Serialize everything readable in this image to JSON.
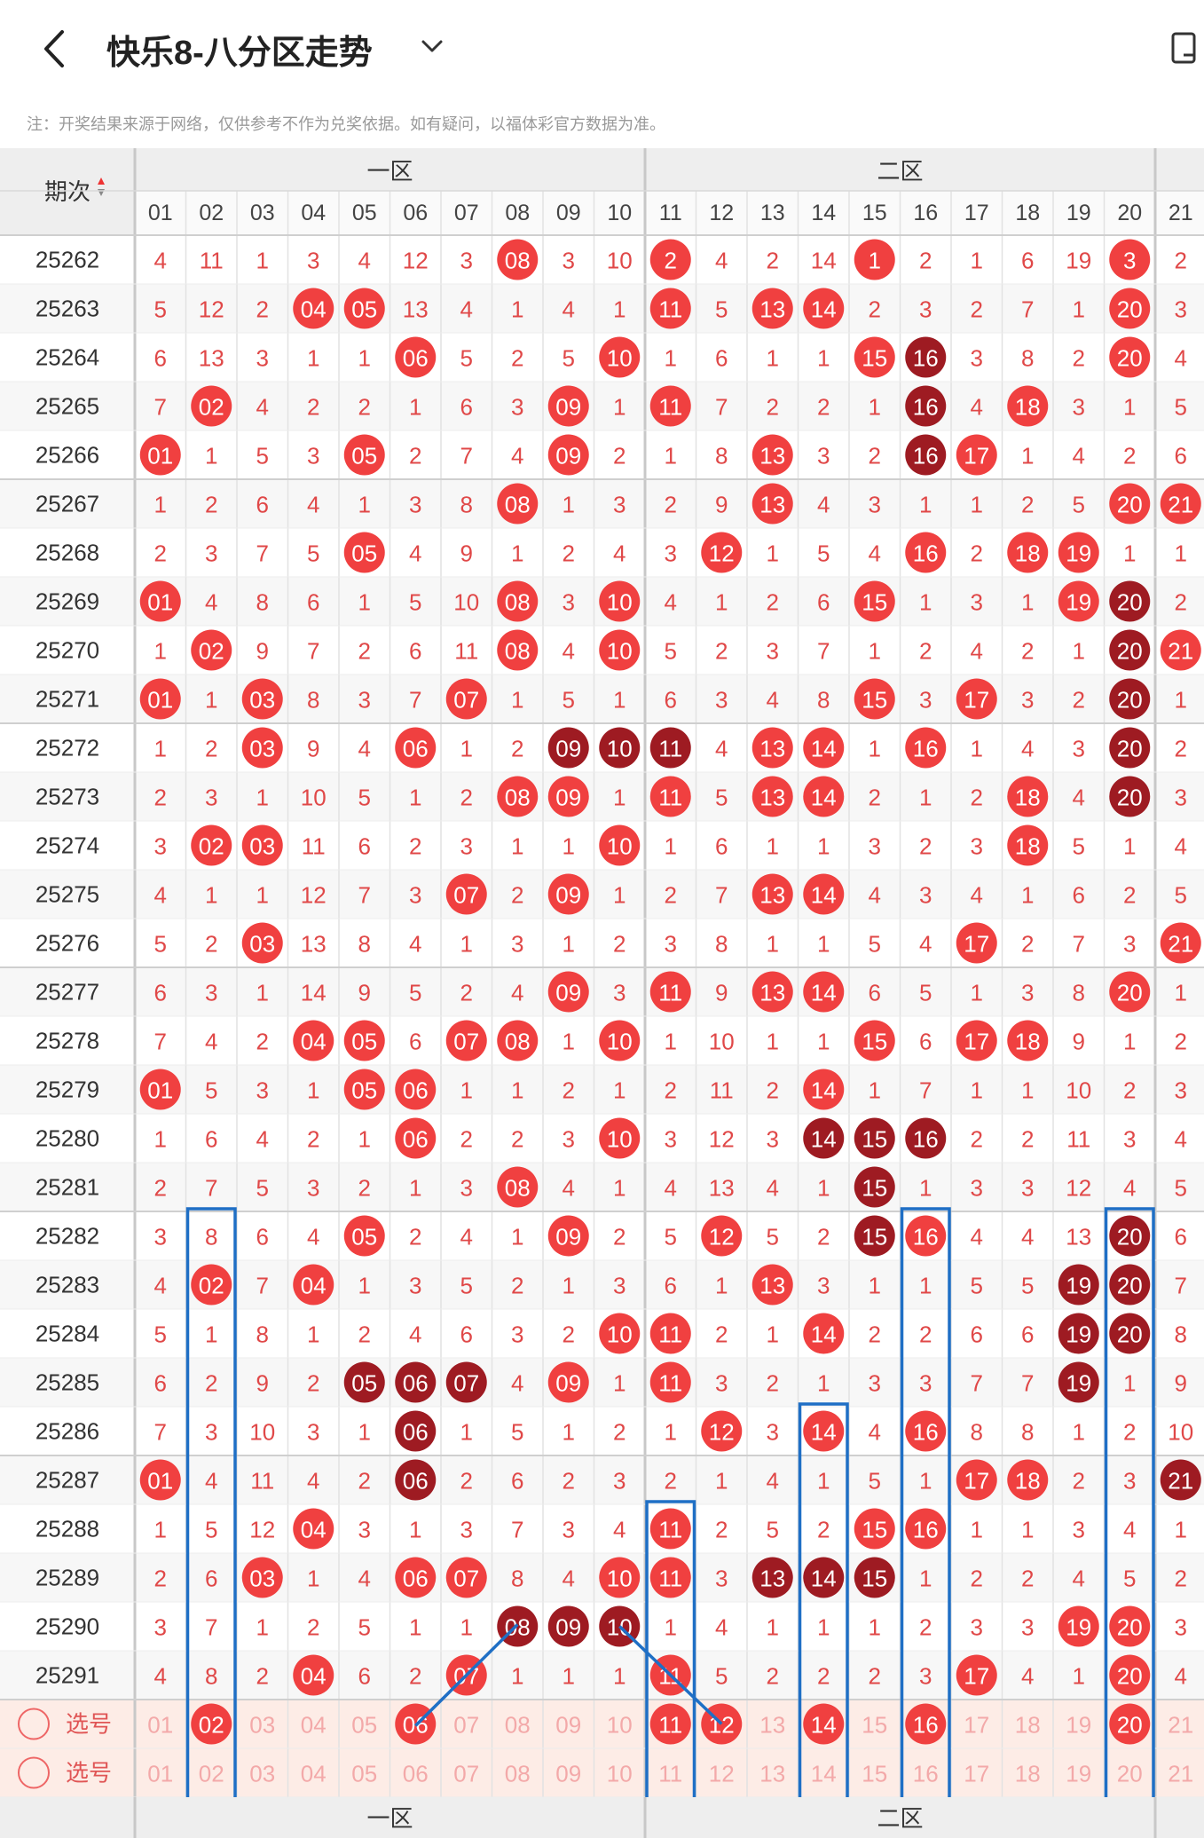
{
  "header": {
    "title": "快乐8-八分区走势",
    "back_icon": "chevron-left-icon",
    "dropdown_icon": "chevron-down-icon",
    "right_icon": "device-icon"
  },
  "note": "注：开奖结果来源于网络，仅供参考不作为兑奖依据。如有疑问，以福体彩官方数据为准。",
  "table": {
    "issue_header": "期次",
    "zones": [
      "一区",
      "二区"
    ],
    "columns": [
      "01",
      "02",
      "03",
      "04",
      "05",
      "06",
      "07",
      "08",
      "09",
      "10",
      "11",
      "12",
      "13",
      "14",
      "15",
      "16",
      "17",
      "18",
      "19",
      "20",
      "21"
    ],
    "rows": [
      {
        "issue": "25262",
        "cells": [
          "4",
          "11",
          "1",
          "3",
          "4",
          "12",
          "3",
          "08",
          "3",
          "10",
          "2",
          "4",
          "2",
          "14",
          "1",
          "2",
          "1",
          "6",
          "19",
          "3",
          "2"
        ],
        "states": "0000000100100010000100"
      },
      {
        "issue": "25263",
        "cells": [
          "5",
          "12",
          "2",
          "04",
          "05",
          "13",
          "4",
          "1",
          "4",
          "1",
          "11",
          "5",
          "13",
          "14",
          "2",
          "3",
          "2",
          "7",
          "1",
          "20",
          "3"
        ],
        "states": "0001100000101100000100"
      },
      {
        "issue": "25264",
        "cells": [
          "6",
          "13",
          "3",
          "1",
          "1",
          "06",
          "5",
          "2",
          "5",
          "10",
          "1",
          "6",
          "1",
          "1",
          "15",
          "16",
          "3",
          "8",
          "2",
          "20",
          "4"
        ],
        "states": "0000010001000012000100"
      },
      {
        "issue": "25265",
        "cells": [
          "7",
          "02",
          "4",
          "2",
          "2",
          "1",
          "6",
          "3",
          "09",
          "1",
          "11",
          "7",
          "2",
          "2",
          "1",
          "16",
          "4",
          "18",
          "3",
          "1",
          "5"
        ],
        "states": "0100000010100002010000"
      },
      {
        "issue": "25266",
        "cells": [
          "01",
          "1",
          "5",
          "3",
          "05",
          "2",
          "7",
          "4",
          "09",
          "2",
          "1",
          "8",
          "13",
          "3",
          "2",
          "16",
          "17",
          "1",
          "4",
          "2",
          "6"
        ],
        "states": "1000100010001002100000"
      },
      {
        "issue": "25267",
        "cells": [
          "1",
          "2",
          "6",
          "4",
          "1",
          "3",
          "8",
          "08",
          "1",
          "3",
          "2",
          "9",
          "13",
          "4",
          "3",
          "1",
          "1",
          "2",
          "5",
          "20",
          "21"
        ],
        "states": "0000000100001000000110"
      },
      {
        "issue": "25268",
        "cells": [
          "2",
          "3",
          "7",
          "5",
          "05",
          "4",
          "9",
          "1",
          "2",
          "4",
          "3",
          "12",
          "1",
          "5",
          "4",
          "16",
          "2",
          "18",
          "19",
          "1",
          "1"
        ],
        "states": "0000100000010001011000"
      },
      {
        "issue": "25269",
        "cells": [
          "01",
          "4",
          "8",
          "6",
          "1",
          "5",
          "10",
          "08",
          "3",
          "10",
          "4",
          "1",
          "2",
          "6",
          "15",
          "1",
          "3",
          "1",
          "19",
          "20",
          "2"
        ],
        "states": "1000000101000010001200"
      },
      {
        "issue": "25270",
        "cells": [
          "1",
          "02",
          "9",
          "7",
          "2",
          "6",
          "11",
          "08",
          "4",
          "10",
          "5",
          "2",
          "3",
          "7",
          "1",
          "2",
          "4",
          "2",
          "1",
          "20",
          "21"
        ],
        "states": "0100000101000000000210"
      },
      {
        "issue": "25271",
        "cells": [
          "01",
          "1",
          "03",
          "8",
          "3",
          "7",
          "07",
          "1",
          "5",
          "1",
          "6",
          "3",
          "4",
          "8",
          "15",
          "3",
          "17",
          "3",
          "2",
          "20",
          "1"
        ],
        "states": "1010001000000010100200"
      },
      {
        "issue": "25272",
        "cells": [
          "1",
          "2",
          "03",
          "9",
          "4",
          "06",
          "1",
          "2",
          "09",
          "10",
          "11",
          "4",
          "13",
          "14",
          "1",
          "16",
          "1",
          "4",
          "3",
          "20",
          "2"
        ],
        "states": "0010010022201101000200"
      },
      {
        "issue": "25273",
        "cells": [
          "2",
          "3",
          "1",
          "10",
          "5",
          "1",
          "2",
          "08",
          "09",
          "1",
          "11",
          "5",
          "13",
          "14",
          "2",
          "1",
          "2",
          "18",
          "4",
          "20",
          "3"
        ],
        "states": "0000000110101100010200"
      },
      {
        "issue": "25274",
        "cells": [
          "3",
          "02",
          "03",
          "11",
          "6",
          "2",
          "3",
          "1",
          "1",
          "10",
          "1",
          "6",
          "1",
          "1",
          "3",
          "2",
          "3",
          "18",
          "5",
          "1",
          "4"
        ],
        "states": "0110000001000000010000"
      },
      {
        "issue": "25275",
        "cells": [
          "4",
          "1",
          "1",
          "12",
          "7",
          "3",
          "07",
          "2",
          "09",
          "1",
          "2",
          "7",
          "13",
          "14",
          "4",
          "3",
          "4",
          "1",
          "6",
          "2",
          "5"
        ],
        "states": "0000001010001100000000"
      },
      {
        "issue": "25276",
        "cells": [
          "5",
          "2",
          "03",
          "13",
          "8",
          "4",
          "1",
          "3",
          "1",
          "2",
          "3",
          "8",
          "1",
          "1",
          "5",
          "4",
          "17",
          "2",
          "7",
          "3",
          "21"
        ],
        "states": "0010000000000000100010"
      },
      {
        "issue": "25277",
        "cells": [
          "6",
          "3",
          "1",
          "14",
          "9",
          "5",
          "2",
          "4",
          "09",
          "3",
          "11",
          "9",
          "13",
          "14",
          "6",
          "5",
          "1",
          "3",
          "8",
          "20",
          "1"
        ],
        "states": "0000000010101100000100"
      },
      {
        "issue": "25278",
        "cells": [
          "7",
          "4",
          "2",
          "04",
          "05",
          "6",
          "07",
          "08",
          "1",
          "10",
          "1",
          "10",
          "1",
          "1",
          "15",
          "6",
          "17",
          "18",
          "9",
          "1",
          "2"
        ],
        "states": "0001101101000010110000"
      },
      {
        "issue": "25279",
        "cells": [
          "01",
          "5",
          "3",
          "1",
          "05",
          "06",
          "1",
          "1",
          "2",
          "1",
          "2",
          "11",
          "2",
          "14",
          "1",
          "7",
          "1",
          "1",
          "10",
          "2",
          "3"
        ],
        "states": "1000110000000100000000"
      },
      {
        "issue": "25280",
        "cells": [
          "1",
          "6",
          "4",
          "2",
          "1",
          "06",
          "2",
          "2",
          "3",
          "10",
          "3",
          "12",
          "3",
          "14",
          "15",
          "16",
          "2",
          "2",
          "11",
          "3",
          "4"
        ],
        "states": "0000010001000222000000"
      },
      {
        "issue": "25281",
        "cells": [
          "2",
          "7",
          "5",
          "3",
          "2",
          "1",
          "3",
          "08",
          "4",
          "1",
          "4",
          "13",
          "4",
          "1",
          "15",
          "1",
          "3",
          "3",
          "12",
          "4",
          "5"
        ],
        "states": "0000000100000020000000"
      },
      {
        "issue": "25282",
        "cells": [
          "3",
          "8",
          "6",
          "4",
          "05",
          "2",
          "4",
          "1",
          "09",
          "2",
          "5",
          "12",
          "5",
          "2",
          "15",
          "16",
          "4",
          "4",
          "13",
          "20",
          "6"
        ],
        "states": "0000100010010021000200"
      },
      {
        "issue": "25283",
        "cells": [
          "4",
          "02",
          "7",
          "04",
          "1",
          "3",
          "5",
          "2",
          "1",
          "3",
          "6",
          "1",
          "13",
          "3",
          "1",
          "1",
          "5",
          "5",
          "19",
          "20",
          "7"
        ],
        "states": "0101000000001000002200"
      },
      {
        "issue": "25284",
        "cells": [
          "5",
          "1",
          "8",
          "1",
          "2",
          "4",
          "6",
          "3",
          "2",
          "10",
          "11",
          "2",
          "1",
          "14",
          "2",
          "2",
          "6",
          "6",
          "19",
          "20",
          "8"
        ],
        "states": "0000000001100100002200"
      },
      {
        "issue": "25285",
        "cells": [
          "6",
          "2",
          "9",
          "2",
          "05",
          "06",
          "07",
          "4",
          "09",
          "1",
          "11",
          "3",
          "2",
          "1",
          "3",
          "3",
          "7",
          "7",
          "19",
          "1",
          "9"
        ],
        "states": "0000222010100000002000"
      },
      {
        "issue": "25286",
        "cells": [
          "7",
          "3",
          "10",
          "3",
          "1",
          "06",
          "1",
          "5",
          "1",
          "2",
          "1",
          "12",
          "3",
          "14",
          "4",
          "16",
          "8",
          "8",
          "1",
          "2",
          "10"
        ],
        "states": "0000020000010101000000"
      },
      {
        "issue": "25287",
        "cells": [
          "01",
          "4",
          "11",
          "4",
          "2",
          "06",
          "2",
          "6",
          "2",
          "3",
          "2",
          "1",
          "4",
          "1",
          "5",
          "1",
          "17",
          "18",
          "2",
          "3",
          "21"
        ],
        "states": "1000020000000000110020"
      },
      {
        "issue": "25288",
        "cells": [
          "1",
          "5",
          "12",
          "04",
          "3",
          "1",
          "3",
          "7",
          "3",
          "4",
          "11",
          "2",
          "5",
          "2",
          "15",
          "16",
          "1",
          "1",
          "3",
          "4",
          "1"
        ],
        "states": "0001000000100011000000"
      },
      {
        "issue": "25289",
        "cells": [
          "2",
          "6",
          "03",
          "1",
          "4",
          "06",
          "07",
          "8",
          "4",
          "10",
          "11",
          "3",
          "13",
          "14",
          "15",
          "1",
          "2",
          "2",
          "4",
          "5",
          "2"
        ],
        "states": "0010011001102220000000"
      },
      {
        "issue": "25290",
        "cells": [
          "3",
          "7",
          "1",
          "2",
          "5",
          "1",
          "1",
          "08",
          "09",
          "10",
          "1",
          "4",
          "1",
          "1",
          "1",
          "2",
          "3",
          "3",
          "19",
          "20",
          "3"
        ],
        "states": "0000000222000000001100"
      },
      {
        "issue": "25291",
        "cells": [
          "4",
          "8",
          "2",
          "04",
          "6",
          "2",
          "07",
          "1",
          "1",
          "1",
          "11",
          "5",
          "2",
          "2",
          "2",
          "3",
          "17",
          "4",
          "1",
          "20",
          "4"
        ],
        "states": "0001001000100000100100"
      }
    ],
    "select_label": "选号",
    "select_selected": [
      "02",
      "06",
      "11",
      "12",
      "14",
      "16",
      "20"
    ]
  },
  "colors": {
    "red": "#f04040",
    "dark_red": "#9e1b22",
    "text_red": "#e04848",
    "highlight_box": "#1f6fc5",
    "row_select_bg": "#fdece6"
  }
}
